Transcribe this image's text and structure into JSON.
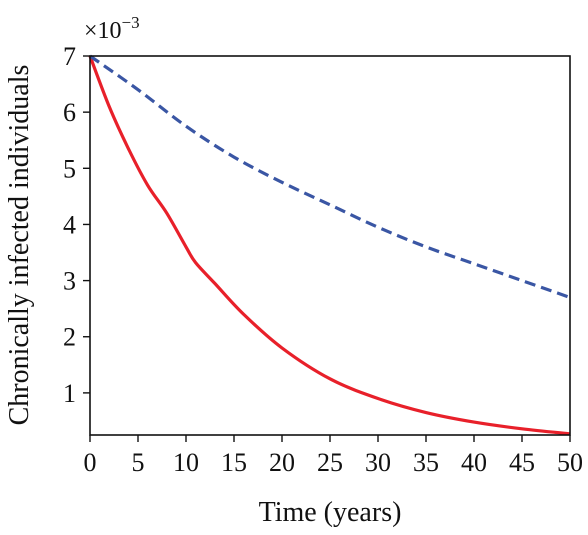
{
  "chart_data": {
    "type": "line",
    "xlabel": "Time (years)",
    "ylabel": "Chronically infected individuals",
    "y_multiplier": "×10",
    "y_exponent": "−3",
    "xlim": [
      0,
      50
    ],
    "ylim": [
      0.25,
      7.0
    ],
    "xticks": [
      "0",
      "5",
      "10",
      "15",
      "20",
      "25",
      "30",
      "35",
      "40",
      "45",
      "50"
    ],
    "yticks": [
      "1",
      "2",
      "3",
      "4",
      "5",
      "6",
      "7"
    ],
    "grid": false,
    "legend": "none",
    "series": [
      {
        "color": "#e8202a",
        "style": "solid",
        "x": [
          0,
          2,
          4,
          6,
          8,
          10,
          11,
          13,
          16,
          20,
          25,
          30,
          35,
          40,
          45,
          50
        ],
        "y": [
          7.0,
          6.1,
          5.35,
          4.7,
          4.2,
          3.6,
          3.32,
          2.95,
          2.4,
          1.8,
          1.25,
          0.9,
          0.65,
          0.48,
          0.36,
          0.27
        ]
      },
      {
        "color": "#3a56a4",
        "style": "dashed",
        "x": [
          0,
          5,
          10,
          15,
          20,
          25,
          30,
          35,
          40,
          45,
          50
        ],
        "y": [
          7.0,
          6.4,
          5.75,
          5.2,
          4.75,
          4.35,
          3.95,
          3.6,
          3.3,
          3.0,
          2.7
        ]
      }
    ]
  }
}
